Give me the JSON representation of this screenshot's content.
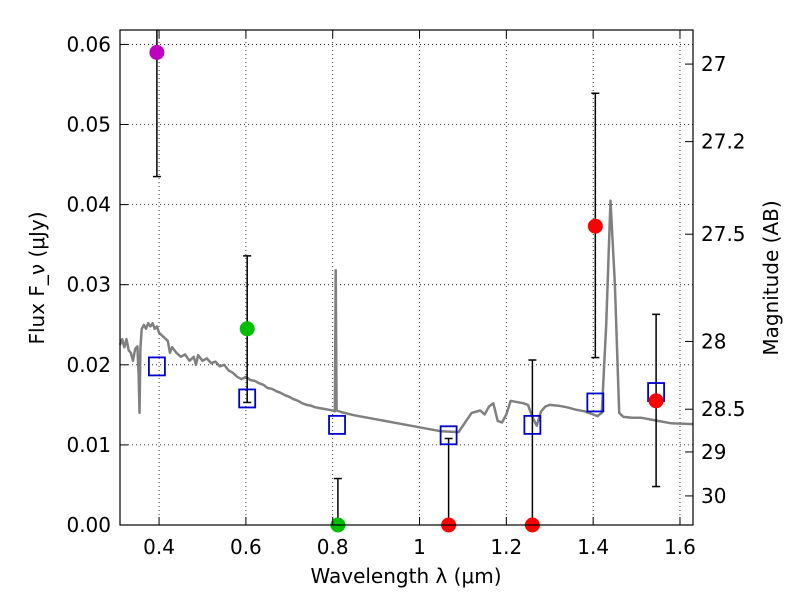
{
  "chart_data": {
    "type": "scatter",
    "xlabel": "Wavelength λ (μm)",
    "ylabel": "Flux F_ν (μJy)",
    "y2label": "Magnitude (AB)",
    "xlim": [
      0.31,
      1.63
    ],
    "ylim": [
      0.0,
      0.0618
    ],
    "xticks": [
      0.4,
      0.6,
      0.8,
      1.0,
      1.2,
      1.4,
      1.6
    ],
    "xtick_labels": [
      "0.4",
      "0.6",
      "0.8",
      "1",
      "1.2",
      "1.4",
      "1.6"
    ],
    "yticks": [
      0.0,
      0.01,
      0.02,
      0.03,
      0.04,
      0.05,
      0.06
    ],
    "ytick_labels": [
      "0.00",
      "0.01",
      "0.02",
      "0.03",
      "0.04",
      "0.05",
      "0.06"
    ],
    "y2ticks": [
      {
        "mag": 27,
        "label": "27"
      },
      {
        "mag": 27.2,
        "label": "27.2"
      },
      {
        "mag": 27.5,
        "label": "27.5"
      },
      {
        "mag": 28,
        "label": "28"
      },
      {
        "mag": 28.5,
        "label": "28.5"
      },
      {
        "mag": 29,
        "label": "29"
      },
      {
        "mag": 30,
        "label": "30"
      }
    ],
    "grid": true,
    "observed": [
      {
        "x": 0.395,
        "y": 0.059,
        "err_lo": 0.0435,
        "err_hi": 0.0618,
        "color": "#bf00bf"
      },
      {
        "x": 0.603,
        "y": 0.0245,
        "err_lo": 0.0153,
        "err_hi": 0.0336,
        "color": "#00bf00"
      },
      {
        "x": 0.812,
        "y": 0.0,
        "err_lo": 0.0,
        "err_hi": 0.0058,
        "color": "#00bf00"
      },
      {
        "x": 1.067,
        "y": 0.0,
        "err_lo": 0.0,
        "err_hi": 0.0108,
        "color": "#ff0000"
      },
      {
        "x": 1.26,
        "y": 0.0,
        "err_lo": 0.0,
        "err_hi": 0.0206,
        "color": "#ff0000"
      },
      {
        "x": 1.405,
        "y": 0.0373,
        "err_lo": 0.0209,
        "err_hi": 0.0539,
        "color": "#ff0000"
      },
      {
        "x": 1.545,
        "y": 0.0155,
        "err_lo": 0.0048,
        "err_hi": 0.0263,
        "color": "#ff0000"
      }
    ],
    "model_points": [
      {
        "x": 0.395,
        "y": 0.0198
      },
      {
        "x": 0.603,
        "y": 0.0158
      },
      {
        "x": 0.81,
        "y": 0.0125
      },
      {
        "x": 1.067,
        "y": 0.0112
      },
      {
        "x": 1.26,
        "y": 0.0125
      },
      {
        "x": 1.405,
        "y": 0.0153
      },
      {
        "x": 1.545,
        "y": 0.0166
      }
    ],
    "sed": {
      "color": "#808080",
      "points": [
        [
          0.31,
          0.0225
        ],
        [
          0.315,
          0.0232
        ],
        [
          0.32,
          0.0222
        ],
        [
          0.325,
          0.0232
        ],
        [
          0.33,
          0.0218
        ],
        [
          0.335,
          0.0215
        ],
        [
          0.34,
          0.0205
        ],
        [
          0.345,
          0.022
        ],
        [
          0.35,
          0.0223
        ],
        [
          0.353,
          0.0185
        ],
        [
          0.355,
          0.014
        ],
        [
          0.357,
          0.022
        ],
        [
          0.36,
          0.0245
        ],
        [
          0.365,
          0.025
        ],
        [
          0.37,
          0.0245
        ],
        [
          0.375,
          0.0252
        ],
        [
          0.38,
          0.0248
        ],
        [
          0.385,
          0.0252
        ],
        [
          0.39,
          0.0245
        ],
        [
          0.395,
          0.0248
        ],
        [
          0.4,
          0.024
        ],
        [
          0.41,
          0.0235
        ],
        [
          0.42,
          0.023
        ],
        [
          0.425,
          0.0215
        ],
        [
          0.43,
          0.0222
        ],
        [
          0.44,
          0.0215
        ],
        [
          0.45,
          0.021
        ],
        [
          0.46,
          0.0213
        ],
        [
          0.47,
          0.0205
        ],
        [
          0.48,
          0.021
        ],
        [
          0.485,
          0.02
        ],
        [
          0.49,
          0.0212
        ],
        [
          0.5,
          0.0205
        ],
        [
          0.51,
          0.0208
        ],
        [
          0.52,
          0.0202
        ],
        [
          0.53,
          0.0204
        ],
        [
          0.54,
          0.0198
        ],
        [
          0.55,
          0.02
        ],
        [
          0.56,
          0.0193
        ],
        [
          0.57,
          0.019
        ],
        [
          0.58,
          0.0185
        ],
        [
          0.59,
          0.0182
        ],
        [
          0.6,
          0.0185
        ],
        [
          0.61,
          0.0181
        ],
        [
          0.62,
          0.018
        ],
        [
          0.63,
          0.0177
        ],
        [
          0.64,
          0.0175
        ],
        [
          0.65,
          0.0171
        ],
        [
          0.66,
          0.017
        ],
        [
          0.67,
          0.0167
        ],
        [
          0.68,
          0.0165
        ],
        [
          0.69,
          0.0162
        ],
        [
          0.7,
          0.016
        ],
        [
          0.71,
          0.0157
        ],
        [
          0.72,
          0.0155
        ],
        [
          0.73,
          0.0152
        ],
        [
          0.74,
          0.015
        ],
        [
          0.75,
          0.0149
        ],
        [
          0.76,
          0.0147
        ],
        [
          0.77,
          0.0146
        ],
        [
          0.78,
          0.0145
        ],
        [
          0.79,
          0.0144
        ],
        [
          0.8,
          0.0143
        ],
        [
          0.805,
          0.0142
        ],
        [
          0.807,
          0.0318
        ],
        [
          0.809,
          0.0143
        ],
        [
          0.82,
          0.0141
        ],
        [
          0.85,
          0.0137
        ],
        [
          0.9,
          0.0132
        ],
        [
          0.95,
          0.0127
        ],
        [
          1.0,
          0.0122
        ],
        [
          1.05,
          0.0117
        ],
        [
          1.09,
          0.0116
        ],
        [
          1.12,
          0.014
        ],
        [
          1.14,
          0.0143
        ],
        [
          1.15,
          0.0138
        ],
        [
          1.16,
          0.0148
        ],
        [
          1.17,
          0.0152
        ],
        [
          1.18,
          0.013
        ],
        [
          1.19,
          0.0128
        ],
        [
          1.2,
          0.0138
        ],
        [
          1.21,
          0.0155
        ],
        [
          1.22,
          0.0154
        ],
        [
          1.24,
          0.0152
        ],
        [
          1.25,
          0.015
        ],
        [
          1.26,
          0.0135
        ],
        [
          1.27,
          0.0124
        ],
        [
          1.28,
          0.0142
        ],
        [
          1.29,
          0.0148
        ],
        [
          1.3,
          0.015
        ],
        [
          1.32,
          0.0149
        ],
        [
          1.34,
          0.0147
        ],
        [
          1.36,
          0.0144
        ],
        [
          1.38,
          0.0142
        ],
        [
          1.4,
          0.0138
        ],
        [
          1.41,
          0.0136
        ],
        [
          1.42,
          0.014
        ],
        [
          1.43,
          0.025
        ],
        [
          1.44,
          0.0405
        ],
        [
          1.45,
          0.03
        ],
        [
          1.46,
          0.014
        ],
        [
          1.47,
          0.0135
        ],
        [
          1.49,
          0.0134
        ],
        [
          1.51,
          0.0134
        ],
        [
          1.54,
          0.0131
        ],
        [
          1.58,
          0.0127
        ],
        [
          1.63,
          0.0126
        ]
      ]
    }
  }
}
